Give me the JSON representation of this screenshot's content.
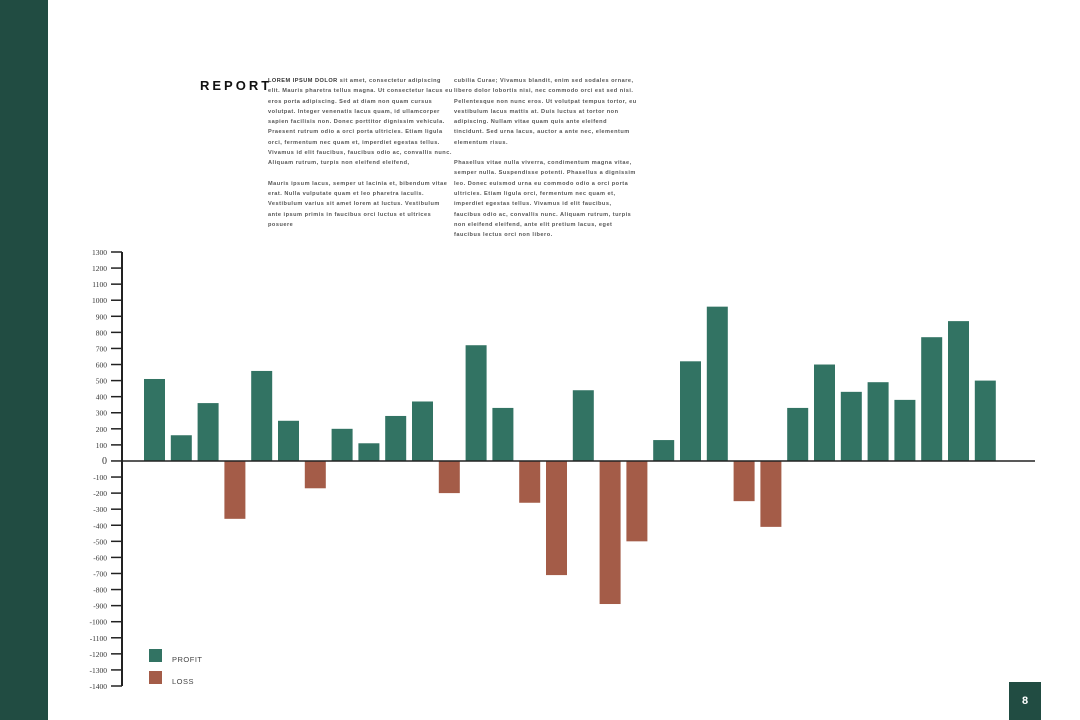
{
  "report": {
    "title": "REPORT",
    "col1_lead": "LOREM IPSUM DOLOR",
    "col1_p1": " sit amet, consectetur adipiscing elit. Mauris pharetra tellus magna. Ut consectetur lacus eu eros porta adipiscing. Sed at diam non quam cursus volutpat. Integer venenatis lacus quam, id ullamcorper sapien facilisis non. Donec porttitor dignissim vehicula. Praesent rutrum odio a orci porta ultricies. Etiam ligula orci, fermentum nec quam et, imperdiet egestas tellus. Vivamus id elit faucibus, faucibus odio ac, convallis nunc. Aliquam rutrum, turpis non eleifend eleifend,",
    "col1_p2": "Mauris ipsum lacus, semper ut lacinia et, bibendum vitae erat. Nulla vulputate quam et leo pharetra iaculis. Vestibulum varius sit amet lorem at luctus. Vestibulum ante ipsum primis in faucibus orci luctus et ultrices posuere",
    "col2_p1": "cubilia Curae; Vivamus blandit, enim sed sodales ornare, libero dolor lobortis nisi, nec commodo orci est sed nisi. Pellentesque non nunc eros. Ut volutpat tempus tortor, eu vestibulum lacus mattis at. Duis luctus at tortor non adipiscing. Nullam vitae quam quis ante eleifend tincidunt. Sed urna lacus, auctor a ante nec, elementum elementum risus.",
    "col2_p2": "Phasellus vitae nulla viverra, condimentum magna vitae, semper nulla. Suspendisse potenti. Phasellus a dignissim leo. Donec euismod urna eu commodo odio a orci porta ultricies. Etiam ligula orci, fermentum nec quam et, imperdiet egestas tellus. Vivamus id elit faucibus, faucibus odio ac, convallis nunc. Aliquam rutrum, turpis non eleifend eleifend, ante elit pretium lacus, eget faucibus lectus orci non libero."
  },
  "page_number": "8",
  "colors": {
    "sidebar": "#214c42",
    "profit": "#327363",
    "loss": "#a45c48"
  },
  "chart_data": {
    "type": "bar",
    "ylim": [
      -1400,
      1300
    ],
    "yticks": [
      "1300",
      "1200",
      "1100",
      "1000",
      "900",
      "800",
      "700",
      "600",
      "500",
      "400",
      "300",
      "200",
      "100",
      "0",
      "-100",
      "-200",
      "-300",
      "-400",
      "-500",
      "-600",
      "-700",
      "-800",
      "-900",
      "-1000",
      "-1100",
      "-1200",
      "-1300",
      "-1400"
    ],
    "values": [
      510,
      160,
      360,
      -360,
      560,
      250,
      -170,
      200,
      110,
      280,
      370,
      -200,
      720,
      330,
      -260,
      -710,
      440,
      -890,
      -500,
      130,
      620,
      960,
      -250,
      -410,
      330,
      600,
      430,
      490,
      380,
      770,
      870,
      500
    ],
    "legend": [
      {
        "label": "PROFIT",
        "color": "#327363"
      },
      {
        "label": "LOSS",
        "color": "#a45c48"
      }
    ],
    "legend_position": "bottom-left",
    "grid": false
  }
}
